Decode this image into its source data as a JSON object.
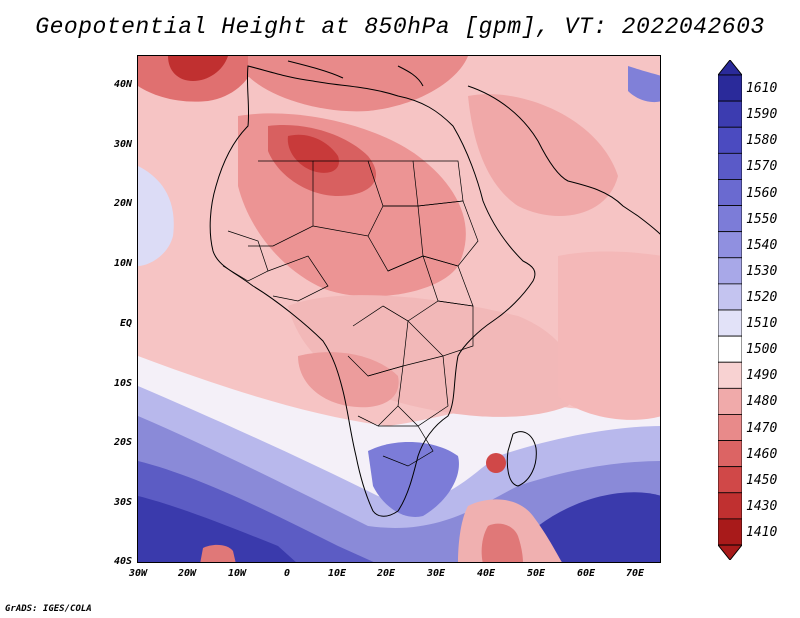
{
  "title": "Geopotential Height at 850hPa [gpm], VT: 2022042603",
  "footer": "GrADS: IGES/COLA",
  "lat_labels": [
    "40N",
    "30N",
    "20N",
    "10N",
    "EQ",
    "10S",
    "20S",
    "30S",
    "40S"
  ],
  "lon_labels": [
    "30W",
    "20W",
    "10W",
    "0",
    "10E",
    "20E",
    "30E",
    "40E",
    "50E",
    "60E",
    "70E"
  ],
  "colorbar": {
    "levels": [
      "1610",
      "1590",
      "1580",
      "1570",
      "1560",
      "1550",
      "1540",
      "1530",
      "1520",
      "1510",
      "1500",
      "1490",
      "1480",
      "1470",
      "1460",
      "1450",
      "1430",
      "1410"
    ],
    "colors": [
      "#2a2a9a",
      "#3c3cb0",
      "#4b4bc0",
      "#5a5ac8",
      "#6a6ad0",
      "#7c7cd8",
      "#9090e0",
      "#a8a8e8",
      "#c4c4f0",
      "#e2e2f8",
      "#ffffff",
      "#f8d2d2",
      "#f0aaaa",
      "#e88a8a",
      "#dc6464",
      "#d04848",
      "#c03030",
      "#a81a1a"
    ]
  },
  "colors": {
    "sea_south": "#4a4ab8",
    "sahara_high": "#c83a3a",
    "land_mid": "#f2a8a8",
    "land_light": "#f8c8c8"
  }
}
